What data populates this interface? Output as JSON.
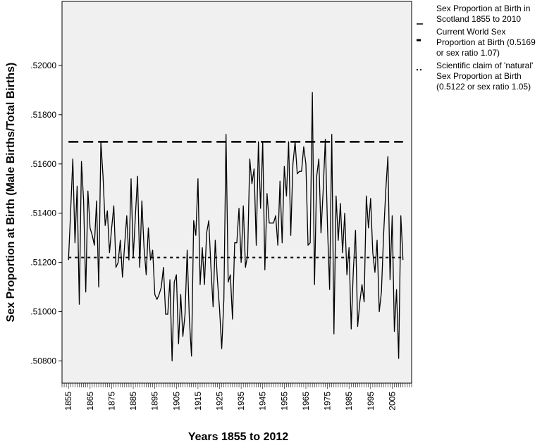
{
  "chart_data": {
    "type": "line",
    "title": "",
    "xlabel": "Years 1855 to 2012",
    "ylabel": "Sex Proportion at Birth (Male Births/Total Births)",
    "xlim": [
      1852,
      2014
    ],
    "ylim": [
      0.5071,
      0.5226
    ],
    "grid": false,
    "legend_position": "top-right, outside plot",
    "x_ticks": [
      "1855",
      "1865",
      "1875",
      "1885",
      "1895",
      "1905",
      "1915",
      "1925",
      "1935",
      "1945",
      "1955",
      "1965",
      "1975",
      "1985",
      "1995",
      "2005"
    ],
    "y_ticks": [
      {
        "value": 0.508,
        "label": ".50800"
      },
      {
        "value": 0.51,
        "label": ".51000"
      },
      {
        "value": 0.512,
        "label": ".51200"
      },
      {
        "value": 0.514,
        "label": ".51400"
      },
      {
        "value": 0.516,
        "label": ".51600"
      },
      {
        "value": 0.518,
        "label": ".51800"
      },
      {
        "value": 0.52,
        "label": ".52000"
      }
    ],
    "series": [
      {
        "name": "Sex Proportion at Birth in Scotland 1855 to 2010",
        "style": "solid",
        "x_start": 1855,
        "x_step": 1,
        "values": [
          0.5121,
          0.5141,
          0.5162,
          0.5128,
          0.5151,
          0.5103,
          0.5161,
          0.5145,
          0.5108,
          0.5149,
          0.5134,
          0.5131,
          0.5127,
          0.5145,
          0.511,
          0.5169,
          0.5155,
          0.5135,
          0.5141,
          0.5124,
          0.5134,
          0.5143,
          0.5118,
          0.512,
          0.5129,
          0.5114,
          0.5127,
          0.5139,
          0.5121,
          0.5154,
          0.5122,
          0.5139,
          0.5155,
          0.5118,
          0.5145,
          0.5126,
          0.5115,
          0.5134,
          0.5121,
          0.5125,
          0.5107,
          0.5105,
          0.5107,
          0.511,
          0.5118,
          0.5099,
          0.5099,
          0.5113,
          0.508,
          0.5112,
          0.5115,
          0.5087,
          0.5107,
          0.509,
          0.5099,
          0.5125,
          0.5097,
          0.5082,
          0.5137,
          0.5131,
          0.5154,
          0.5111,
          0.5126,
          0.5111,
          0.5132,
          0.5137,
          0.5118,
          0.5102,
          0.5129,
          0.5113,
          0.5101,
          0.5085,
          0.5105,
          0.5172,
          0.5112,
          0.5115,
          0.5097,
          0.5128,
          0.5128,
          0.5142,
          0.512,
          0.5143,
          0.5118,
          0.5123,
          0.5162,
          0.5152,
          0.5158,
          0.5127,
          0.5169,
          0.5142,
          0.5169,
          0.5117,
          0.5148,
          0.5136,
          0.5136,
          0.5136,
          0.5139,
          0.5127,
          0.5153,
          0.5128,
          0.5159,
          0.5147,
          0.5169,
          0.5131,
          0.516,
          0.5169,
          0.5156,
          0.5157,
          0.5157,
          0.5167,
          0.516,
          0.5127,
          0.5128,
          0.5189,
          0.5111,
          0.5155,
          0.5162,
          0.5132,
          0.5149,
          0.517,
          0.5135,
          0.5109,
          0.5172,
          0.5091,
          0.5147,
          0.5129,
          0.5144,
          0.5124,
          0.514,
          0.5115,
          0.5126,
          0.5093,
          0.5117,
          0.5133,
          0.5094,
          0.5104,
          0.5111,
          0.5104,
          0.5147,
          0.5134,
          0.5146,
          0.5124,
          0.5116,
          0.5129,
          0.51,
          0.5108,
          0.5131,
          0.5149,
          0.5163,
          0.5113,
          0.5139,
          0.5092,
          0.5109,
          0.5081,
          0.5139,
          0.5121
        ]
      },
      {
        "name": "Current World Sex Proportion at Birth (0.5169 or sex ratio 1.07)",
        "style": "dashed",
        "constant": 0.5169
      },
      {
        "name": "Scientific claim of 'natural' Sex Proportion at Birth (0.5122 or sex ratio 1.05)",
        "style": "dotted",
        "constant": 0.5122
      }
    ],
    "legend_lines": [
      [
        "Sex Proportion at Birth in",
        "Scotland 1855 to 2010"
      ],
      [
        "Current World Sex",
        "Proportion at Birth (0.5169",
        "or sex ratio 1.07)"
      ],
      [
        "Scientific claim of 'natural'",
        "Sex Proportion at Birth",
        "(0.5122 or sex ratio 1.05)"
      ]
    ],
    "colors": {
      "plot_background": "#f0f0f0",
      "line": "#000000"
    }
  }
}
